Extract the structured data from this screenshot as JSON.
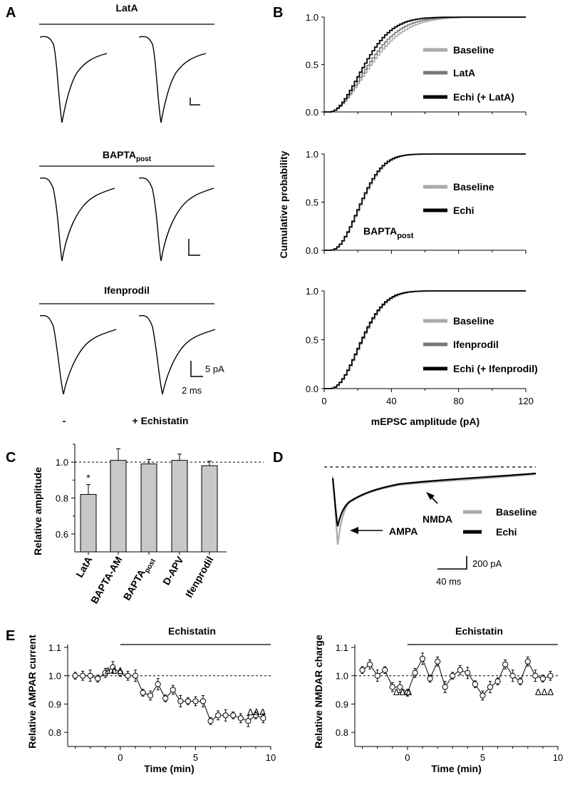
{
  "panels": {
    "A": "A",
    "B": "B",
    "C": "C",
    "D": "D",
    "E": "E"
  },
  "panelA": {
    "conditions": [
      "LatA",
      "BAPTA",
      "Ifenprodil"
    ],
    "bapta_sub": "post",
    "scale_amp": "5 pA",
    "scale_time": "2 ms",
    "minus_label": "-",
    "plus_label": "+ Echistatin"
  },
  "panelB": {
    "ylabel": "Cumulative probability",
    "xlabel": "mEPSC amplitude (pA)",
    "xticks": [
      "0",
      "40",
      "80",
      "120"
    ],
    "yticks": [
      "0.0",
      "0.5",
      "1.0"
    ],
    "inset_label": "BAPTA",
    "inset_sub": "post",
    "legends": [
      [
        "Baseline",
        "LatA",
        "Echi (+ LatA)"
      ],
      [
        "Baseline",
        "Echi"
      ],
      [
        "Baseline",
        "Ifenprodil",
        "Echi (+ Ifenprodil)"
      ]
    ]
  },
  "panelC": {
    "ylabel": "Relative amplitude",
    "yticks": [
      "0.6",
      "0.8",
      "1.0"
    ],
    "star": "*",
    "cat_sub": "post"
  },
  "panelD": {
    "legend": [
      "Baseline",
      "Echi"
    ],
    "nmda_label": "NMDA",
    "ampa_label": "AMPA",
    "scale_amp": "200 pA",
    "scale_time": "40 ms"
  },
  "panelE": {
    "bar_label": "Echistatin",
    "xlabel": "Time (min)",
    "left_ylabel": "Relative AMPAR current",
    "right_ylabel": "Relative NMDAR charge",
    "xticks": [
      "0",
      "5",
      "10"
    ],
    "yticks": [
      "0.8",
      "0.9",
      "1.0",
      "1.1"
    ],
    "marker": "ΔΔΔ"
  },
  "colors": {
    "baseline": "#aaaaaa",
    "treatment": "#777777",
    "echi": "#000000",
    "bar": "#c8c8c8"
  },
  "chart_data": [
    {
      "type": "bar",
      "categories": [
        "LatA",
        "BAPTA-AM",
        "BAPTApost",
        "D-APV",
        "Ifenprodil"
      ],
      "values": [
        0.82,
        1.01,
        0.99,
        1.01,
        0.98
      ],
      "errors": [
        0.055,
        0.065,
        0.025,
        0.035,
        0.025
      ],
      "ylabel": "Relative amplitude",
      "ylim": [
        0.5,
        1.1
      ]
    },
    {
      "type": "line",
      "ylabel": "Relative AMPAR current",
      "xlabel": "Time (min)",
      "xlim": [
        -3.5,
        10
      ],
      "ylim": [
        0.75,
        1.1
      ],
      "x": [
        -3,
        -2.5,
        -2,
        -1.5,
        -1,
        -0.5,
        0,
        0.5,
        1,
        1.5,
        2,
        2.5,
        3,
        3.5,
        4,
        4.5,
        5,
        5.5,
        6,
        6.5,
        7,
        7.5,
        8,
        8.5,
        9,
        9.5
      ],
      "y": [
        1.0,
        1.0,
        1.0,
        0.99,
        1.01,
        1.03,
        1.01,
        1.0,
        1.0,
        0.94,
        0.93,
        0.97,
        0.92,
        0.95,
        0.91,
        0.91,
        0.91,
        0.91,
        0.84,
        0.86,
        0.86,
        0.86,
        0.85,
        0.84,
        0.86,
        0.85
      ]
    },
    {
      "type": "line",
      "ylabel": "Relative NMDAR charge",
      "xlabel": "Time (min)",
      "xlim": [
        -3.5,
        10
      ],
      "ylim": [
        0.75,
        1.1
      ],
      "x": [
        -3,
        -2.5,
        -2,
        -1.5,
        -1,
        -0.5,
        0,
        0.5,
        1,
        1.5,
        2,
        2.5,
        3,
        3.5,
        4,
        4.5,
        5,
        5.5,
        6,
        6.5,
        7,
        7.5,
        8,
        8.5,
        9,
        9.5
      ],
      "y": [
        1.02,
        1.04,
        1.0,
        1.02,
        0.96,
        0.96,
        0.94,
        1.01,
        1.06,
        0.99,
        1.05,
        0.96,
        1.0,
        1.02,
        1.01,
        0.97,
        0.93,
        0.96,
        0.98,
        1.04,
        1.0,
        0.98,
        1.05,
        1.0,
        0.99,
        1.0
      ]
    }
  ]
}
